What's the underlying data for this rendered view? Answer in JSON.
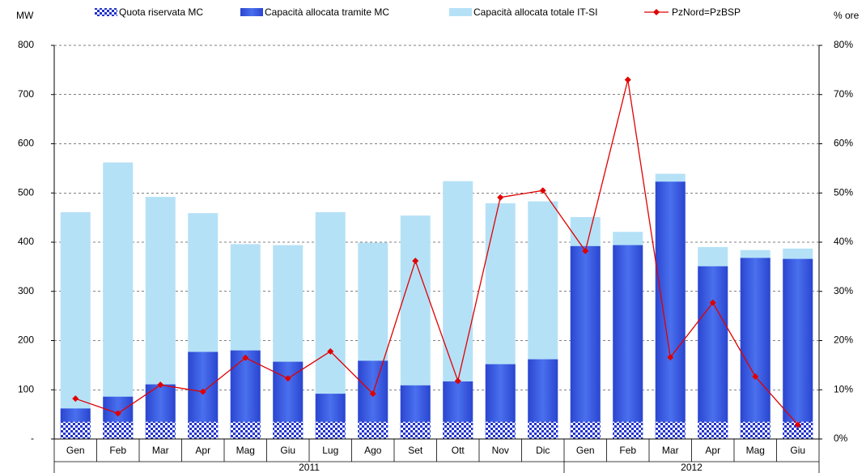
{
  "chart_data": {
    "type": "bar",
    "barmode": "overlay",
    "ylabel": "MW",
    "y2label": "% ore",
    "categories": [
      "Gen",
      "Feb",
      "Mar",
      "Apr",
      "Mag",
      "Giu",
      "Lug",
      "Ago",
      "Set",
      "Ott",
      "Nov",
      "Dic",
      "Gen",
      "Feb",
      "Mar",
      "Apr",
      "Mag",
      "Giu"
    ],
    "groups": [
      "2011",
      "2011",
      "2011",
      "2011",
      "2011",
      "2011",
      "2011",
      "2011",
      "2011",
      "2011",
      "2011",
      "2011",
      "2012",
      "2012",
      "2012",
      "2012",
      "2012",
      "2012"
    ],
    "series": [
      {
        "name": "Quota riservata MC",
        "type": "bar",
        "color": "#2233cc",
        "pattern": "checker",
        "values": [
          35,
          35,
          35,
          35,
          35,
          35,
          35,
          35,
          35,
          35,
          35,
          35,
          35,
          35,
          35,
          35,
          35,
          35
        ]
      },
      {
        "name": "Capacità allocata tramite MC",
        "type": "bar",
        "color": "#3a5ce0",
        "values": [
          62,
          86,
          111,
          177,
          180,
          157,
          92,
          159,
          109,
          117,
          152,
          162,
          392,
          394,
          523,
          351,
          368,
          366
        ]
      },
      {
        "name": "Capacità allocata totale IT-SI",
        "type": "bar",
        "color": "#b5e1f7",
        "values": [
          461,
          562,
          492,
          459,
          396,
          394,
          461,
          399,
          454,
          524,
          479,
          483,
          451,
          421,
          539,
          390,
          384,
          387
        ]
      },
      {
        "name": "PzNord=PzBSP",
        "type": "line",
        "axis": "y2",
        "color": "#e00000",
        "values": [
          8.2,
          5.2,
          11,
          9.6,
          16.5,
          12.3,
          17.8,
          9.2,
          36.2,
          11.8,
          49.1,
          50.5,
          38.2,
          73,
          16.6,
          27.7,
          12.7,
          2.9
        ]
      }
    ],
    "ylim": [
      0,
      800
    ],
    "yticks": [
      {
        "value": 0,
        "label": "-"
      },
      100,
      200,
      300,
      400,
      500,
      600,
      700,
      800
    ],
    "y2lim": [
      0,
      80
    ],
    "y2ticks": [
      {
        "value": 0,
        "label": "0%"
      },
      {
        "value": 10,
        "label": "10%"
      },
      {
        "value": 20,
        "label": "20%"
      },
      {
        "value": 30,
        "label": "30%"
      },
      {
        "value": 40,
        "label": "40%"
      },
      {
        "value": 50,
        "label": "50%"
      },
      {
        "value": 60,
        "label": "60%"
      },
      {
        "value": 70,
        "label": "70%"
      },
      {
        "value": 80,
        "label": "80%"
      }
    ],
    "grid": true
  }
}
